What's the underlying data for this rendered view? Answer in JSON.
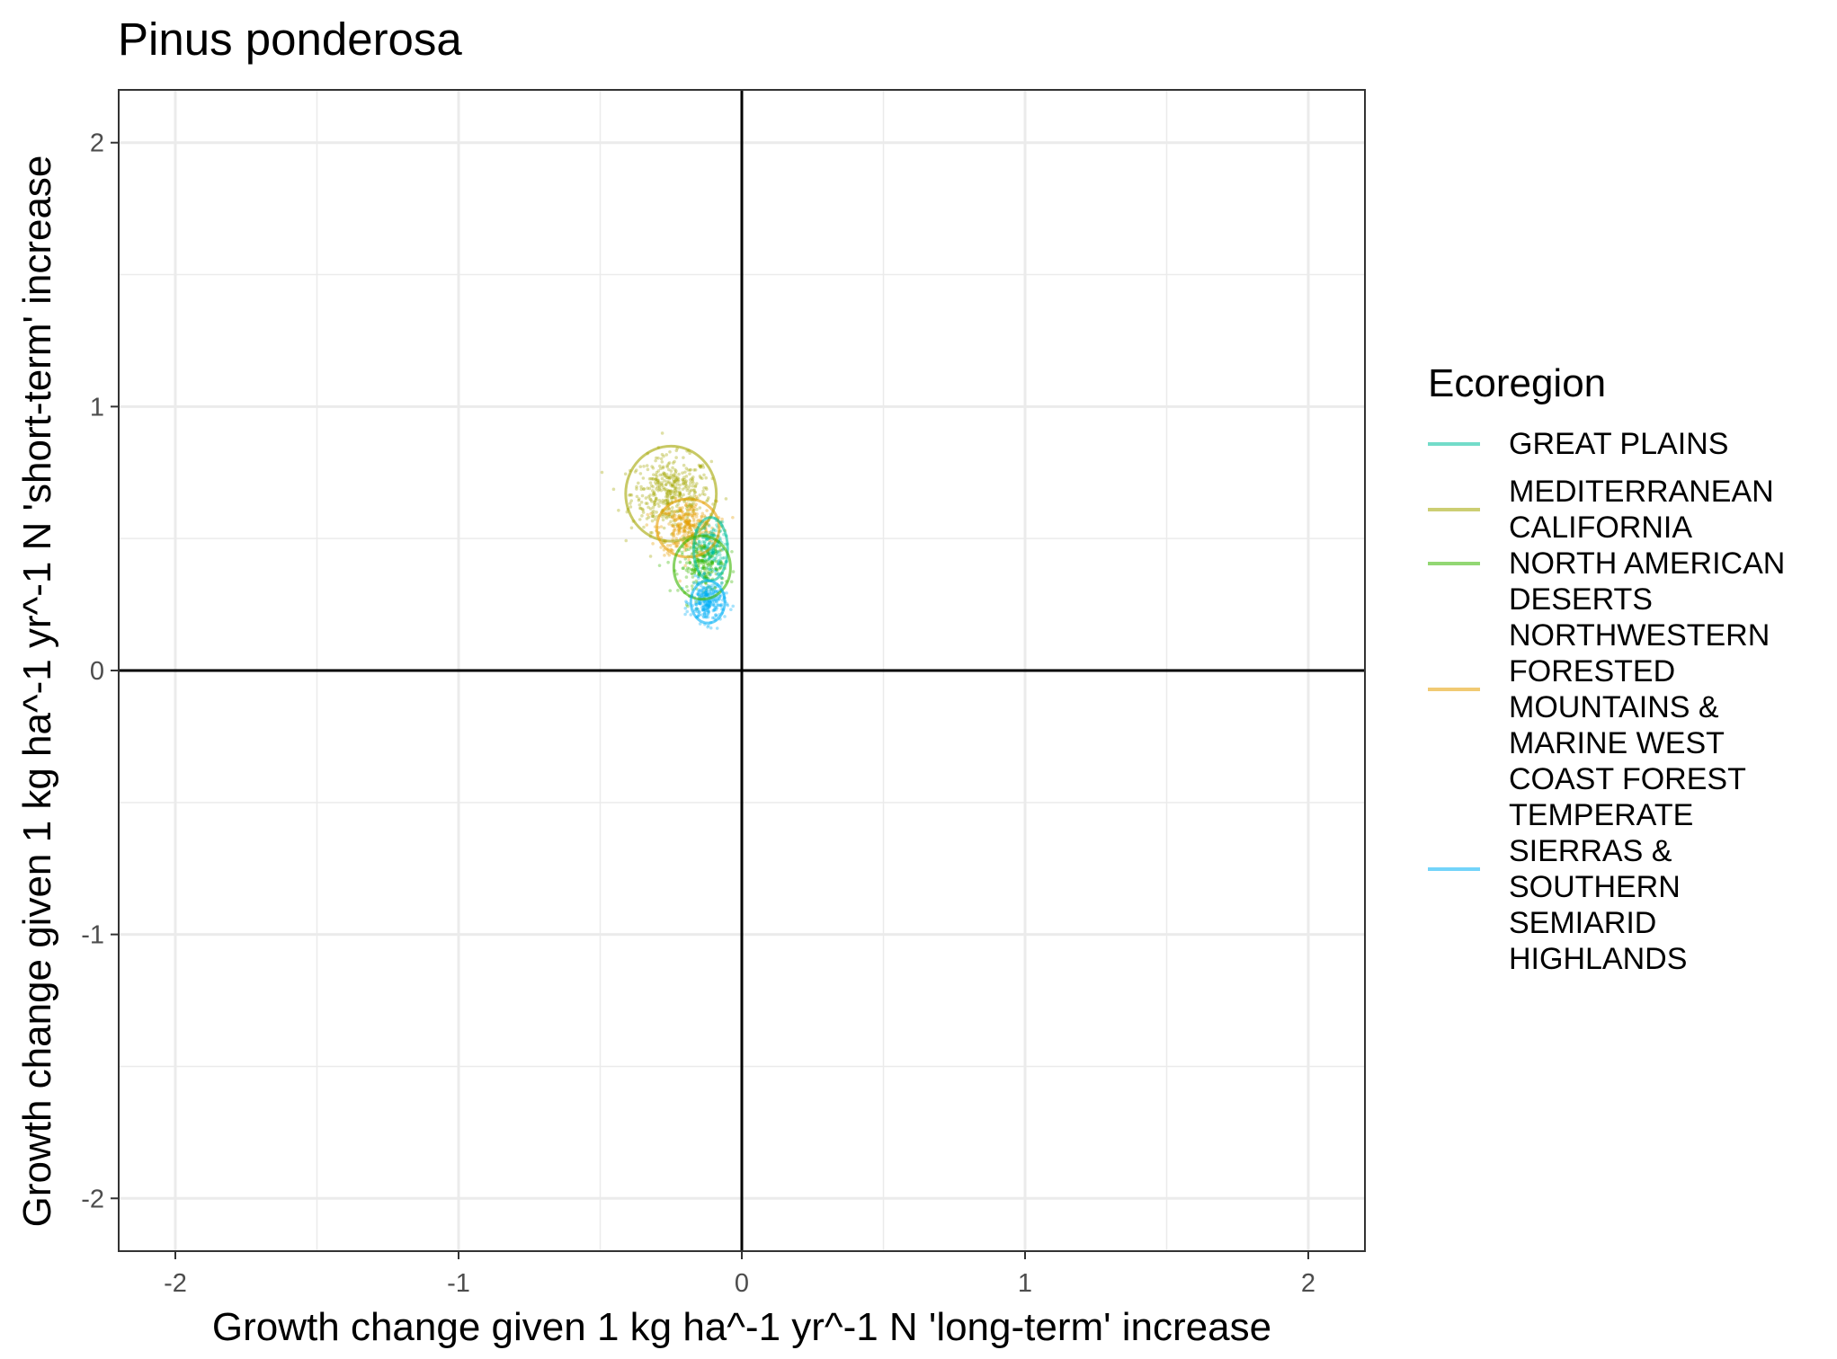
{
  "chart_data": {
    "type": "scatter",
    "title": "Pinus ponderosa",
    "xlabel": "Growth change given 1 kg ha^-1 yr^-1 N 'long-term' increase",
    "ylabel": "Growth change given 1 kg ha^-1 yr^-1 N 'short-term' increase",
    "xlim": [
      -2.2,
      2.2
    ],
    "ylim": [
      -2.2,
      2.2
    ],
    "x_ticks": [
      "-2",
      "-1",
      "0",
      "1",
      "2"
    ],
    "y_ticks": [
      "-2",
      "-1",
      "0",
      "1",
      "2"
    ],
    "grid": true,
    "reference_lines": [
      {
        "axis": "x",
        "value": 0
      },
      {
        "axis": "y",
        "value": 0
      }
    ],
    "legend": {
      "title": "Ecoregion",
      "position": "right",
      "entries": [
        {
          "label": "GREAT PLAINS",
          "color": "#00BF9C"
        },
        {
          "label": "MEDITERRANEAN CALIFORNIA",
          "color": "#A3A500"
        },
        {
          "label": "NORTH AMERICAN DESERTS",
          "color": "#39B600"
        },
        {
          "label": "NORTHWESTERN FORESTED MOUNTAINS & MARINE WEST COAST FOREST",
          "color": "#E69F00"
        },
        {
          "label": "TEMPERATE SIERRAS & SOUTHERN SEMIARID HIGHLANDS",
          "color": "#00B0F6"
        }
      ]
    },
    "series": [
      {
        "name": "MEDITERRANEAN CALIFORNIA",
        "color": "#A3A500",
        "center": [
          -0.25,
          0.67
        ],
        "spread": [
          0.07,
          0.07
        ],
        "n_points": 450,
        "ellipse_radius": [
          0.16,
          0.18
        ]
      },
      {
        "name": "NORTHWESTERN FORESTED MOUNTAINS & MARINE WEST COAST FOREST",
        "color": "#E69F00",
        "center": [
          -0.19,
          0.54
        ],
        "spread": [
          0.05,
          0.05
        ],
        "n_points": 300,
        "ellipse_radius": [
          0.11,
          0.11
        ]
      },
      {
        "name": "GREAT PLAINS",
        "color": "#00BF9C",
        "center": [
          -0.11,
          0.46
        ],
        "spread": [
          0.025,
          0.05
        ],
        "n_points": 200,
        "ellipse_radius": [
          0.06,
          0.12
        ]
      },
      {
        "name": "NORTH AMERICAN DESERTS",
        "color": "#39B600",
        "center": [
          -0.14,
          0.39
        ],
        "spread": [
          0.04,
          0.05
        ],
        "n_points": 220,
        "ellipse_radius": [
          0.1,
          0.12
        ]
      },
      {
        "name": "TEMPERATE SIERRAS & SOUTHERN SEMIARID HIGHLANDS",
        "color": "#00B0F6",
        "center": [
          -0.12,
          0.26
        ],
        "spread": [
          0.03,
          0.04
        ],
        "n_points": 260,
        "ellipse_radius": [
          0.06,
          0.08
        ]
      }
    ]
  }
}
